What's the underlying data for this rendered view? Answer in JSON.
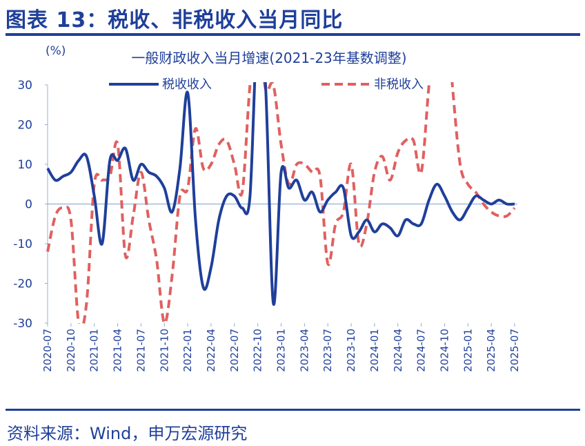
{
  "figure_title": "图表 13：税收、非税收入当月同比",
  "source": "资料来源：Wind，申万宏源研究",
  "colors": {
    "accent": "#1f3f9a",
    "tax": "#1f3f9a",
    "nontax": "#e06060",
    "axis": "#8fb0d8"
  },
  "chart_data": {
    "type": "line",
    "title": "一般财政收入当月增速(2021-23年基数调整)",
    "unit_label": "(%)",
    "xlabel": "",
    "ylabel": "",
    "ylim": [
      -30,
      30
    ],
    "yticks": [
      30,
      20,
      10,
      0,
      -10,
      -20,
      -30
    ],
    "grid": false,
    "legend": "top",
    "x": [
      "2020-07",
      "2020-08",
      "2020-09",
      "2020-10",
      "2020-11",
      "2020-12",
      "2021-01",
      "2021-02",
      "2021-03",
      "2021-04",
      "2021-05",
      "2021-06",
      "2021-07",
      "2021-08",
      "2021-09",
      "2021-10",
      "2021-11",
      "2021-12",
      "2022-01",
      "2022-02",
      "2022-03",
      "2022-04",
      "2022-05",
      "2022-06",
      "2022-07",
      "2022-08",
      "2022-09",
      "2022-10",
      "2022-11",
      "2022-12",
      "2023-01",
      "2023-02",
      "2023-03",
      "2023-04",
      "2023-05",
      "2023-06",
      "2023-07",
      "2023-08",
      "2023-09",
      "2023-10",
      "2023-11",
      "2023-12",
      "2024-01",
      "2024-02",
      "2024-03",
      "2024-04",
      "2024-05",
      "2024-06",
      "2024-07",
      "2024-08",
      "2024-09",
      "2024-10",
      "2024-11",
      "2024-12",
      "2025-01",
      "2025-02",
      "2025-03",
      "2025-04",
      "2025-05",
      "2025-06",
      "2025-07"
    ],
    "xtick_labels": [
      "2020-07",
      "2020-10",
      "2021-01",
      "2021-04",
      "2021-07",
      "2021-10",
      "2022-01",
      "2022-04",
      "2022-07",
      "2022-10",
      "2023-01",
      "2023-04",
      "2023-07",
      "2023-10",
      "2024-01",
      "2024-04",
      "2024-07",
      "2024-10",
      "2025-01",
      "2025-04",
      "2025-07"
    ],
    "series": [
      {
        "name": "税收收入",
        "style": "solid",
        "values": [
          9,
          6,
          7,
          8,
          11,
          12,
          2,
          -10,
          11,
          11,
          14,
          6,
          10,
          8,
          7,
          4,
          -2,
          9,
          28,
          -4,
          -21,
          -16,
          -4,
          2,
          2,
          -1,
          2,
          46,
          30,
          -25,
          8,
          4,
          6,
          1,
          3,
          -2,
          1,
          3,
          4,
          -8,
          -7,
          -4,
          -7,
          -5,
          -6,
          -8,
          -4,
          -5,
          -5,
          1,
          5,
          2,
          -2,
          -4,
          -1,
          2,
          1,
          0,
          1,
          0,
          0
        ]
      },
      {
        "name": "非税收入",
        "style": "dashed",
        "values": [
          -12,
          -3,
          -1,
          -4,
          -30,
          -25,
          5,
          6,
          7,
          15,
          -13,
          -3,
          8,
          -4,
          -14,
          -30,
          -18,
          2,
          4,
          19,
          9,
          10,
          15,
          16,
          10,
          3,
          30,
          44,
          29,
          30,
          15,
          5,
          10,
          10,
          8,
          7,
          -15,
          -5,
          -2,
          10,
          -10,
          -5,
          8,
          12,
          6,
          13,
          16,
          16,
          8,
          30,
          48,
          55,
          30,
          10,
          5,
          3,
          0,
          -2,
          -3,
          -3,
          -1
        ]
      }
    ]
  }
}
